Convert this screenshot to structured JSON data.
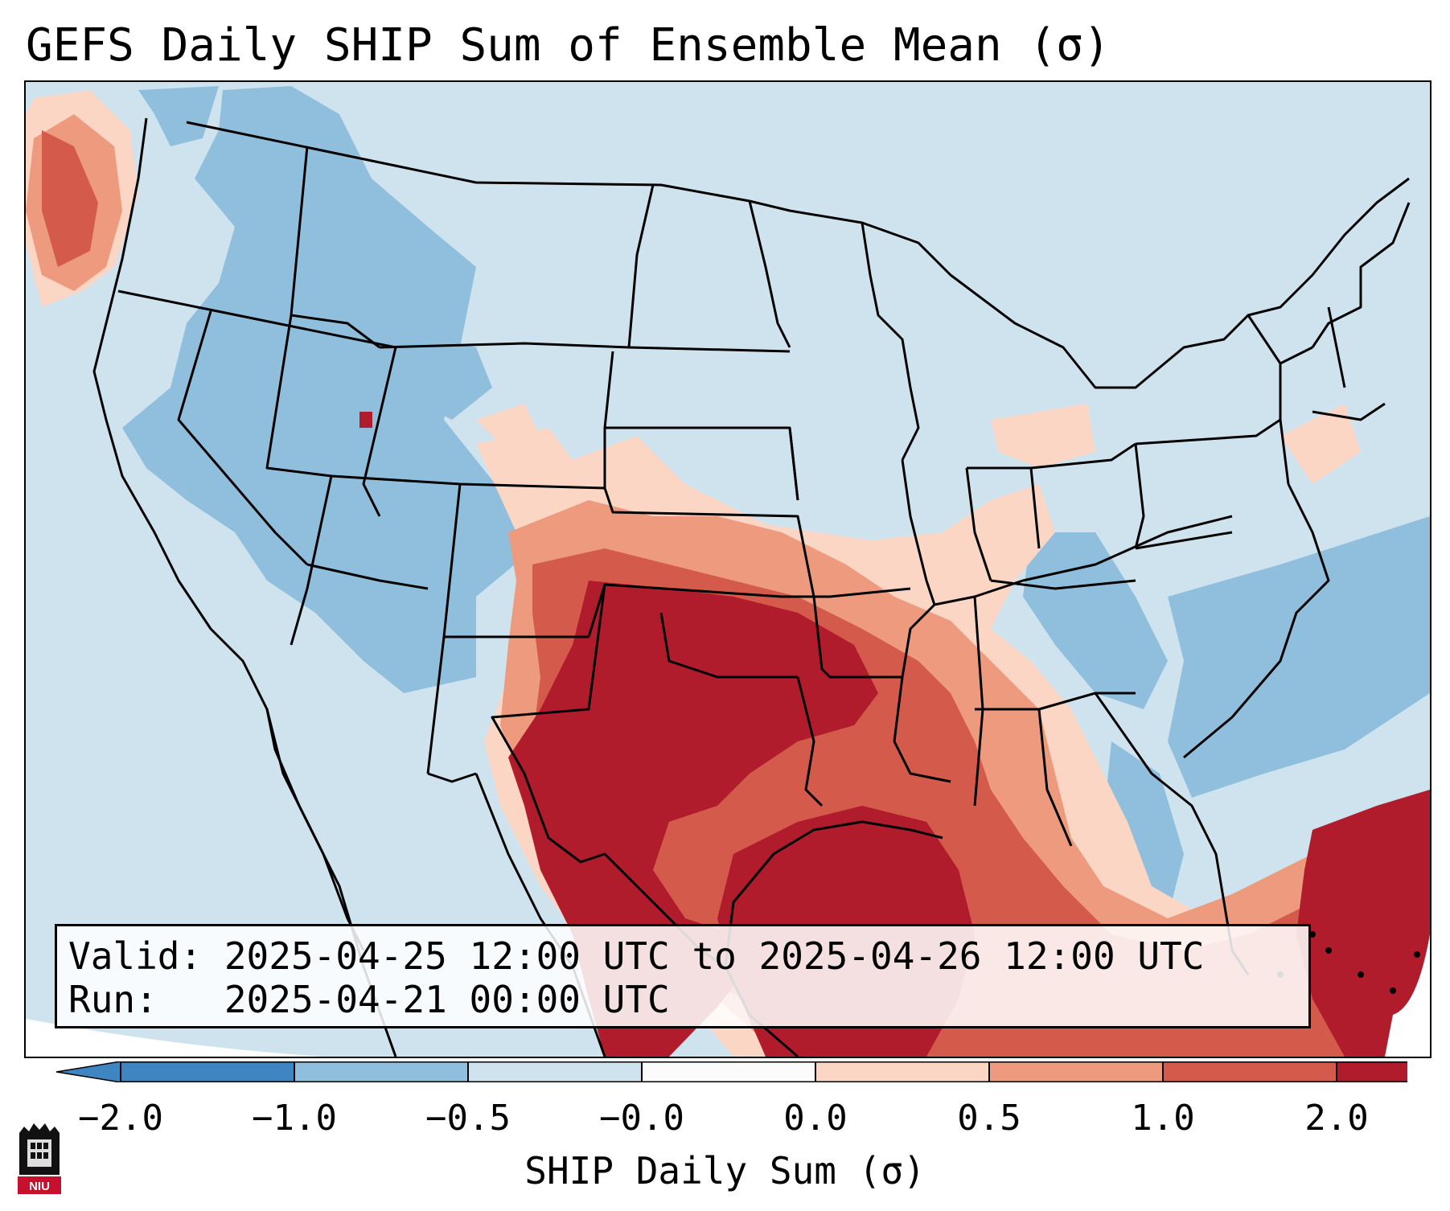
{
  "title": "GEFS Daily SHIP Sum of Ensemble Mean (σ)",
  "info_box": {
    "valid_line": "Valid: 2025-04-25 12:00 UTC to 2025-04-26 12:00 UTC",
    "run_line": "Run:   2025-04-21 00:00 UTC"
  },
  "colorbar": {
    "label": "SHIP Daily Sum (σ)",
    "ticks": [
      "−2.0",
      "−1.0",
      "−0.5",
      "−0.0",
      "0.0",
      "0.5",
      "1.0",
      "2.0"
    ],
    "colors": [
      "#3f85c2",
      "#8fbfdc",
      "#cfe3ef",
      "#fbfbfb",
      "#fbd6c4",
      "#ee9a7e",
      "#d45a4c",
      "#b01c2c"
    ]
  },
  "logo": {
    "text": "NIU",
    "icon": "university-building-icon"
  },
  "map": {
    "ocean_color": "#cfe3ef",
    "border_color": "#000000",
    "anomaly_regions": [
      {
        "name": "southern-plains-core",
        "value": 2.0
      },
      {
        "name": "gulf-of-mexico-core",
        "value": 2.0
      },
      {
        "name": "western-atlantic-core",
        "value": 2.0
      },
      {
        "name": "lower-mississippi-valley",
        "value": 1.0
      },
      {
        "name": "southeast-us",
        "value": 0.5
      },
      {
        "name": "intermountain-west",
        "value": -0.5
      },
      {
        "name": "western-atlantic-offshore",
        "value": -0.5
      }
    ]
  }
}
